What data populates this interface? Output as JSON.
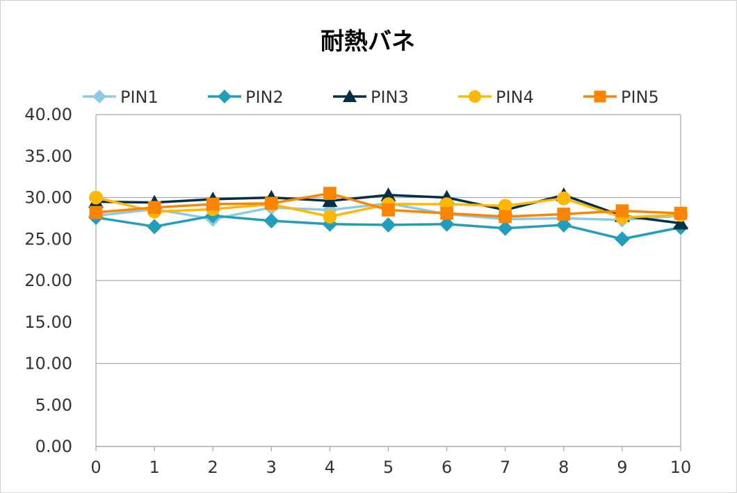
{
  "chart_data": {
    "type": "line",
    "title": "耐熱バネ",
    "xlabel": "",
    "ylabel": "",
    "x": [
      0,
      1,
      2,
      3,
      4,
      5,
      6,
      7,
      8,
      9,
      10
    ],
    "x_tick_labels": [
      "0",
      "1",
      "2",
      "3",
      "4",
      "5",
      "6",
      "7",
      "8",
      "9",
      "10"
    ],
    "ylim": [
      0,
      40
    ],
    "y_tick_labels": [
      "0.00",
      "5.00",
      "10.00",
      "15.00",
      "20.00",
      "25.00",
      "30.00",
      "35.00",
      "40.00"
    ],
    "y_tick_values": [
      0,
      5,
      10,
      15,
      20,
      25,
      30,
      35,
      40
    ],
    "grid_y_values": [
      0,
      10,
      20,
      30,
      40
    ],
    "legend_position": "top",
    "series": [
      {
        "name": "PIN1",
        "color": "#8ecae6",
        "marker": "diamond",
        "values": [
          27.8,
          28.6,
          27.4,
          28.8,
          28.5,
          29.3,
          28.0,
          27.4,
          27.5,
          27.3,
          27.8
        ]
      },
      {
        "name": "PIN2",
        "color": "#219ebc",
        "marker": "diamond",
        "values": [
          27.6,
          26.5,
          27.8,
          27.2,
          26.8,
          26.7,
          26.8,
          26.3,
          26.7,
          25.0,
          26.4
        ]
      },
      {
        "name": "PIN3",
        "color": "#023047",
        "marker": "triangle",
        "values": [
          29.5,
          29.4,
          29.8,
          30.0,
          29.6,
          30.3,
          30.0,
          28.5,
          30.3,
          27.8,
          26.9
        ]
      },
      {
        "name": "PIN4",
        "color": "#ffb703",
        "marker": "circle",
        "values": [
          30.0,
          28.3,
          28.6,
          29.2,
          27.7,
          29.2,
          29.2,
          29.0,
          29.9,
          27.6,
          27.9
        ]
      },
      {
        "name": "PIN5",
        "color": "#fb8500",
        "marker": "square",
        "values": [
          28.2,
          28.8,
          29.2,
          29.3,
          30.5,
          28.5,
          28.1,
          27.7,
          28.0,
          28.4,
          28.1
        ]
      }
    ]
  }
}
